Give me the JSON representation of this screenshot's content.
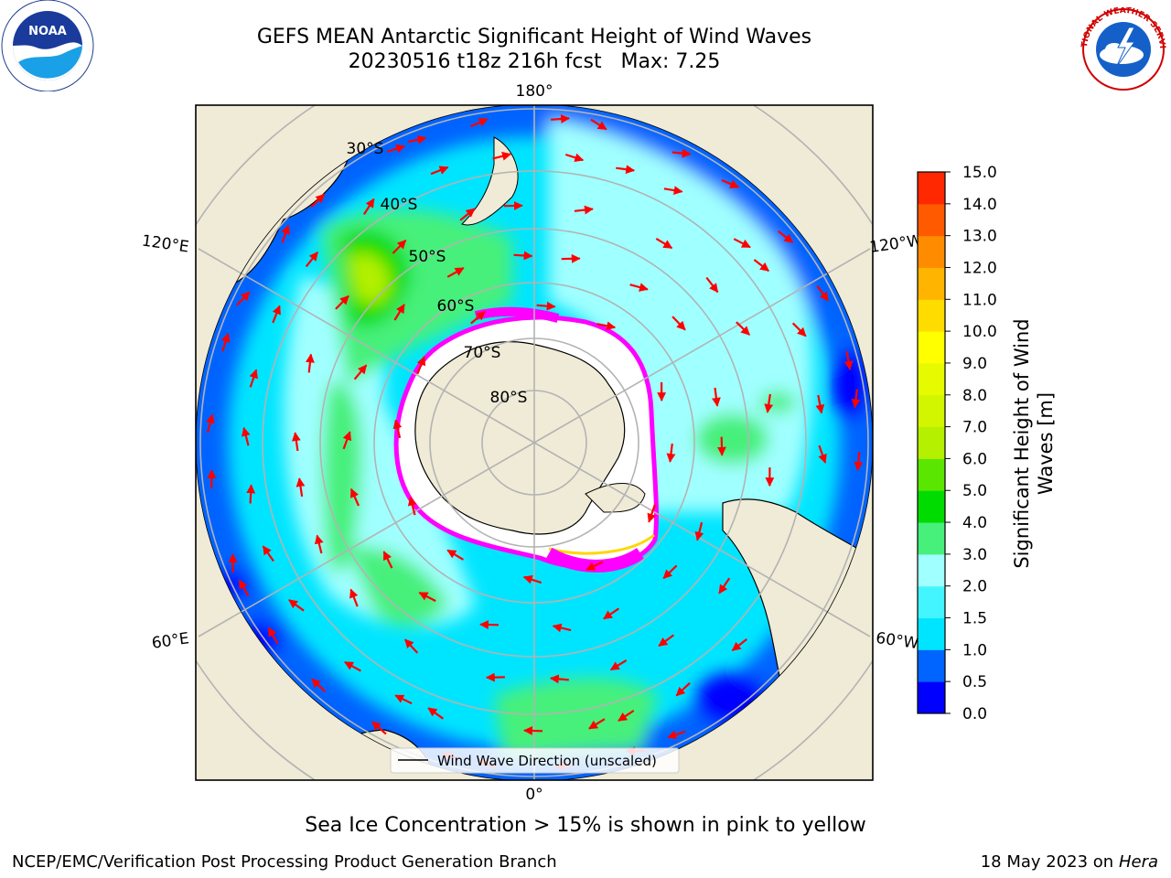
{
  "header": {
    "title_line1": "GEFS MEAN Antarctic Significant Height of Wind Waves",
    "title_line2": "20230516 t18z 216h fcst   Max: 7.25"
  },
  "logos": {
    "left": {
      "name": "NOAA",
      "text": "NOAA"
    },
    "right": {
      "name": "National Weather Service",
      "text": "NATIONAL WEATHER SERVICE"
    }
  },
  "map": {
    "projection": "south-polar-stereographic",
    "longitude_labels": [
      "180°",
      "120°E",
      "120°W",
      "60°E",
      "60°W",
      "0°"
    ],
    "latitude_labels": [
      "30°S",
      "40°S",
      "50°S",
      "60°S",
      "70°S",
      "80°S"
    ],
    "legend_label": "Wind Wave Direction (unscaled)"
  },
  "colorbar": {
    "label_line1": "Significant Height of Wind",
    "label_line2": "Waves [m]",
    "ticks": [
      "0.0",
      "0.5",
      "1.0",
      "1.5",
      "2.0",
      "3.0",
      "4.0",
      "5.0",
      "6.0",
      "7.0",
      "8.0",
      "9.0",
      "10.0",
      "11.0",
      "12.0",
      "13.0",
      "14.0",
      "15.0"
    ],
    "colors": [
      "#0000ff",
      "#0064ff",
      "#00e5ff",
      "#42f5ff",
      "#a0ffff",
      "#46f07a",
      "#00dc00",
      "#5ae600",
      "#b4f000",
      "#d2f500",
      "#e6fa00",
      "#ffff00",
      "#ffdc00",
      "#ffb400",
      "#ff8c00",
      "#ff5a00",
      "#ff2800"
    ]
  },
  "colors": {
    "land": "#efebd6",
    "ice": "#ffffff",
    "grid": "#b3b3b3",
    "arrow": "#ff0000",
    "sea_ice_edge": "#ff00ff"
  },
  "notes": {
    "sea_ice": "Sea Ice Concentration > 15% is shown in pink to yellow"
  },
  "footer": {
    "left": "NCEP/EMC/Verification Post Processing Product Generation Branch",
    "right_date": "18 May 2023 on",
    "right_machine": "Hera"
  }
}
